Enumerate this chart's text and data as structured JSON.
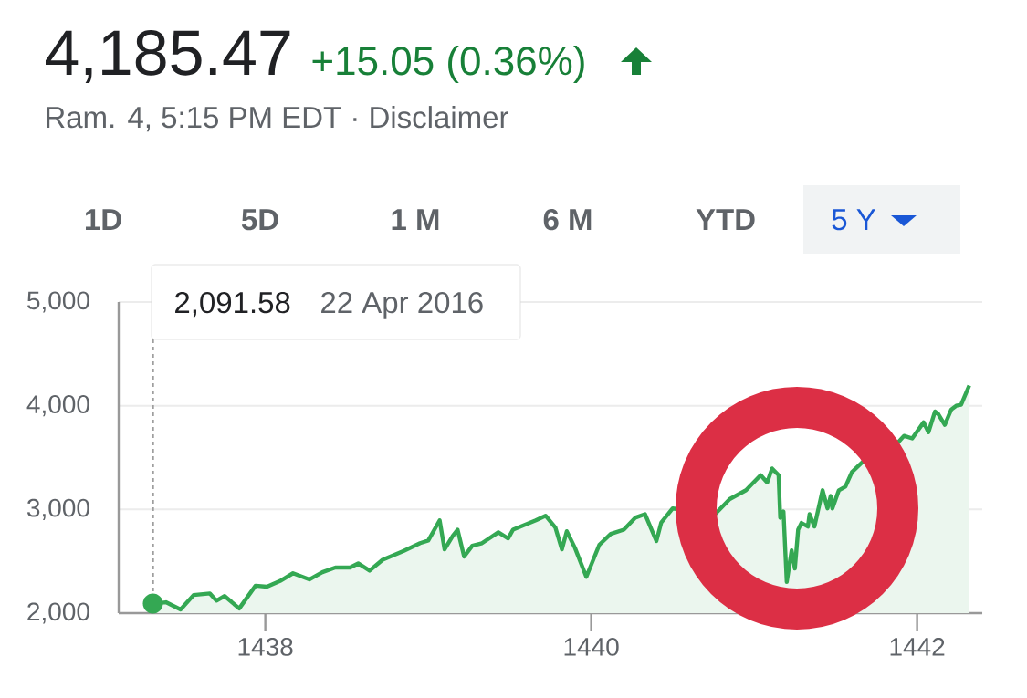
{
  "chart_data": {
    "type": "area",
    "title": "4,185.47",
    "subtitle": "Ram. 4, 5:15 PM EDT · Disclaimer",
    "annotations": [
      "+15.05 (0.36%)",
      "1D",
      "5D",
      "1 M",
      "6 M",
      "YTD",
      "5 Y",
      "2,091.58",
      "22 Apr 2016"
    ],
    "color": "#34a853",
    "x": [
      1437.31,
      1437.39,
      1437.48,
      1437.56,
      1437.66,
      1437.7,
      1437.75,
      1437.84,
      1437.94,
      1438.01,
      1438.09,
      1438.17,
      1438.27,
      1438.35,
      1438.43,
      1438.52,
      1438.57,
      1438.64,
      1438.72,
      1438.85,
      1438.95,
      1439.0,
      1439.07,
      1439.1,
      1439.15,
      1439.18,
      1439.22,
      1439.27,
      1439.33,
      1439.43,
      1439.49,
      1439.52,
      1439.66,
      1439.72,
      1439.78,
      1439.82,
      1439.85,
      1439.9,
      1439.97,
      1440.05,
      1440.12,
      1440.2,
      1440.27,
      1440.33,
      1440.4,
      1440.43,
      1440.5,
      1440.76,
      1440.85,
      1440.95,
      1441.04,
      1441.08,
      1441.11,
      1441.15,
      1441.16,
      1441.18,
      1441.2,
      1441.23,
      1441.25,
      1441.27,
      1441.29,
      1441.33,
      1441.34,
      1441.37,
      1441.42,
      1441.45,
      1441.47,
      1441.48,
      1441.52,
      1441.56,
      1441.6,
      1441.68,
      1441.71,
      1441.88,
      1441.92,
      1441.97,
      1442.04,
      1442.07,
      1442.11,
      1442.13,
      1442.17,
      1442.21,
      1442.24,
      1442.27,
      1442.32
    ],
    "values": [
      2091.58,
      2105,
      2035,
      2175,
      2190,
      2120,
      2165,
      2045,
      2265,
      2255,
      2310,
      2385,
      2325,
      2395,
      2440,
      2440,
      2480,
      2410,
      2515,
      2600,
      2675,
      2700,
      2895,
      2615,
      2745,
      2805,
      2545,
      2650,
      2675,
      2780,
      2720,
      2805,
      2895,
      2940,
      2825,
      2615,
      2790,
      2630,
      2350,
      2660,
      2765,
      2805,
      2920,
      2955,
      2695,
      2875,
      3010,
      2955,
      3100,
      3185,
      3330,
      3260,
      3395,
      3330,
      2920,
      2980,
      2300,
      2605,
      2430,
      2805,
      2870,
      2835,
      2955,
      2835,
      3185,
      3010,
      3130,
      3010,
      3185,
      3220,
      3360,
      3480,
      3420,
      3640,
      3710,
      3685,
      3840,
      3745,
      3945,
      3920,
      3815,
      3965,
      4000,
      4010,
      4195
    ],
    "xlim": [
      1437.1,
      1442.4
    ],
    "ylim": [
      2000,
      5000
    ],
    "xticks": [
      1438,
      1440,
      1442
    ],
    "yticks": [
      {
        "value": 2000,
        "label": "2,000"
      },
      {
        "value": 3000,
        "label": "3,000"
      },
      {
        "value": 4000,
        "label": "4,000"
      },
      {
        "value": 5000,
        "label": "5,000"
      }
    ],
    "grid": "y",
    "ref_lines": [
      {
        "axis": "x",
        "value": 1437.31,
        "line_style": "dotted",
        "color": "#9e9e9e"
      }
    ]
  }
}
